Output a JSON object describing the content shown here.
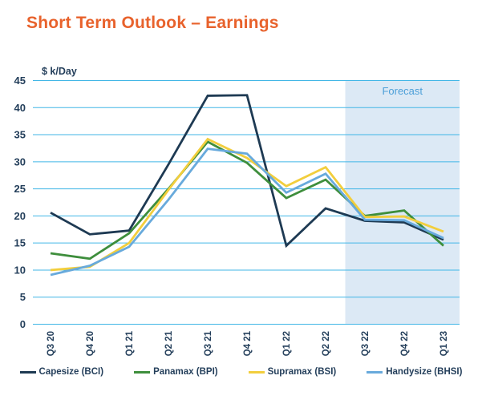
{
  "title": "Short Term Outlook – Earnings",
  "colors": {
    "title": "#E8622C",
    "axis_text": "#243F5B",
    "gridline": "#41B6E6",
    "forecast_bg": "#DCE9F5",
    "forecast_text": "#4C9FD8",
    "legend_text": "#243F5B"
  },
  "chart_data": {
    "type": "line",
    "title": "Short Term Outlook – Earnings",
    "ylabel": "$ k/Day",
    "xlabel": "",
    "ylim": [
      0,
      45
    ],
    "ytick_step": 5,
    "grid": true,
    "legend_position": "bottom",
    "categories": [
      "Q3 20",
      "Q4 20",
      "Q1 21",
      "Q2 21",
      "Q3 21",
      "Q4 21",
      "Q1 22",
      "Q2 22",
      "Q3 22",
      "Q4 22",
      "Q1 23"
    ],
    "series": [
      {
        "name": "Capesize (BCI)",
        "color": "#1E3A53",
        "values": [
          20.6,
          16.6,
          17.3,
          29.5,
          42.2,
          42.3,
          14.5,
          21.4,
          19.1,
          18.8,
          15.6
        ]
      },
      {
        "name": "Panamax (BPI)",
        "color": "#3E8E3C",
        "values": [
          13.1,
          12.1,
          16.8,
          25.0,
          33.7,
          29.8,
          23.3,
          26.7,
          20.0,
          21.0,
          14.5
        ]
      },
      {
        "name": "Supramax (BSI)",
        "color": "#F2CE3D",
        "values": [
          10.0,
          10.6,
          15.0,
          24.8,
          34.2,
          30.7,
          25.5,
          29.0,
          19.8,
          19.9,
          17.1
        ]
      },
      {
        "name": "Handysize (BHSI)",
        "color": "#68AADC",
        "values": [
          9.1,
          10.8,
          14.3,
          23.0,
          32.4,
          31.5,
          24.3,
          27.8,
          19.3,
          19.2,
          15.9
        ]
      }
    ],
    "forecast": {
      "label": "Forecast",
      "start_category": "Q3 22"
    }
  }
}
